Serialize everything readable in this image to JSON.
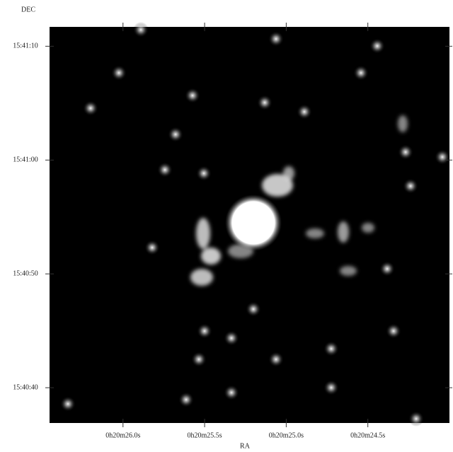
{
  "chart_data": {
    "type": "image",
    "xlabel": "RA",
    "ylabel": "DEC",
    "xlim": [
      26.45,
      24.0
    ],
    "xticks": [
      {
        "value": 26.0,
        "label": "0h20m26.0s"
      },
      {
        "value": 25.5,
        "label": "0h20m25.5s"
      },
      {
        "value": 25.0,
        "label": "0h20m25.0s"
      },
      {
        "value": 24.5,
        "label": "0h20m24.5s"
      }
    ],
    "ylim": [
      36.9,
      71.7
    ],
    "yticks": [
      {
        "value": 70,
        "label": "15:41:10"
      },
      {
        "value": 60,
        "label": "15:41:00"
      },
      {
        "value": 50,
        "label": "15:40:50"
      },
      {
        "value": 40,
        "label": "15:40:40"
      }
    ]
  }
}
